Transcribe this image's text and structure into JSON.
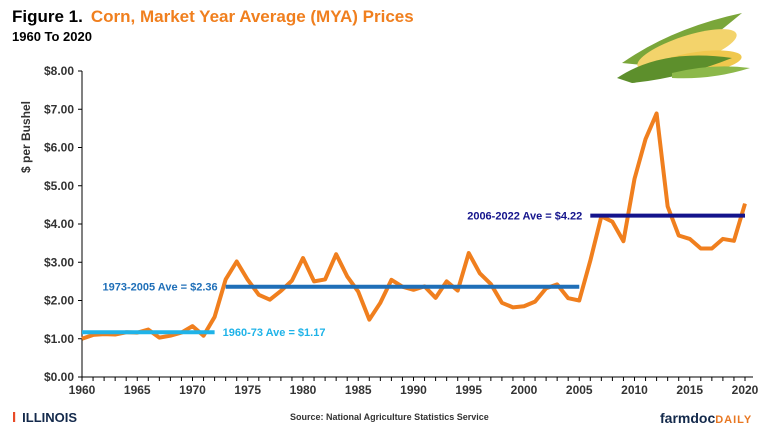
{
  "header": {
    "figure_label": "Figure 1.",
    "title": "Corn, Market Year Average (MYA) Prices",
    "subtitle": "1960 To 2020"
  },
  "footer": {
    "source": "Source:  National Agriculture Statistics Service",
    "illinois_logo": "ILLINOIS",
    "farmdoc_logo_a": "farmdoc",
    "farmdoc_logo_b": "DAILY"
  },
  "colors": {
    "price": "#f07f1e",
    "ave1": "#1fb3e8",
    "ave2": "#1f6fb8",
    "ave3": "#14148c"
  },
  "chart_data": {
    "type": "line",
    "title": "Corn, Market Year Average (MYA) Prices",
    "ylabel": "$ per Bushel",
    "xlabel": "",
    "ylim": [
      0,
      8
    ],
    "xlim": [
      1960,
      2020
    ],
    "yticks": [
      "$0.00",
      "$1.00",
      "$2.00",
      "$3.00",
      "$4.00",
      "$5.00",
      "$6.00",
      "$7.00",
      "$8.00"
    ],
    "xticks": [
      "1960",
      "1965",
      "1970",
      "1975",
      "1980",
      "1985",
      "1990",
      "1995",
      "2000",
      "2005",
      "2010",
      "2015",
      "2020"
    ],
    "x": [
      1960,
      1961,
      1962,
      1963,
      1964,
      1965,
      1966,
      1967,
      1968,
      1969,
      1970,
      1971,
      1972,
      1973,
      1974,
      1975,
      1976,
      1977,
      1978,
      1979,
      1980,
      1981,
      1982,
      1983,
      1984,
      1985,
      1986,
      1987,
      1988,
      1989,
      1990,
      1991,
      1992,
      1993,
      1994,
      1995,
      1996,
      1997,
      1998,
      1999,
      2000,
      2001,
      2002,
      2003,
      2004,
      2005,
      2006,
      2007,
      2008,
      2009,
      2010,
      2011,
      2012,
      2013,
      2014,
      2015,
      2016,
      2017,
      2018,
      2019,
      2020
    ],
    "series": [
      {
        "name": "MYA Price",
        "values": [
          1.0,
          1.1,
          1.12,
          1.11,
          1.17,
          1.16,
          1.24,
          1.03,
          1.08,
          1.16,
          1.33,
          1.08,
          1.57,
          2.55,
          3.02,
          2.54,
          2.15,
          2.02,
          2.25,
          2.52,
          3.11,
          2.5,
          2.55,
          3.21,
          2.63,
          2.23,
          1.5,
          1.94,
          2.54,
          2.36,
          2.28,
          2.37,
          2.07,
          2.5,
          2.26,
          3.24,
          2.71,
          2.43,
          1.94,
          1.82,
          1.85,
          1.97,
          2.32,
          2.42,
          2.06,
          2.0,
          3.04,
          4.2,
          4.06,
          3.55,
          5.18,
          6.22,
          6.89,
          4.46,
          3.7,
          3.61,
          3.36,
          3.36,
          3.61,
          3.56,
          4.53
        ]
      }
    ],
    "averages": [
      {
        "label": "1960-73 Ave = $1.17",
        "value": 1.17,
        "from": 1960,
        "to": 1972
      },
      {
        "label": "1973-2005 Ave = $2.36",
        "value": 2.36,
        "from": 1973,
        "to": 2005
      },
      {
        "label": "2006-2022 Ave = $4.22",
        "value": 4.22,
        "from": 2006,
        "to": 2020
      }
    ],
    "grid": false,
    "legend": "none"
  }
}
